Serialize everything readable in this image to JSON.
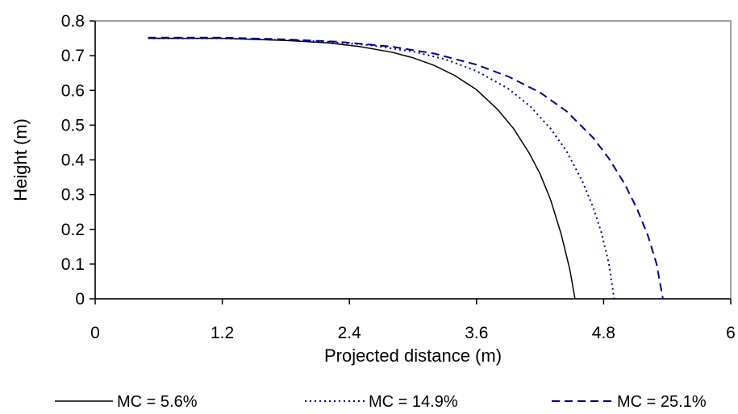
{
  "chart_data": {
    "type": "line",
    "title": "",
    "xlabel": "Projected distance (m)",
    "ylabel": "Height (m)",
    "xlim": [
      0,
      6
    ],
    "ylim": [
      0,
      0.8
    ],
    "x_ticks": [
      "0",
      "1.2",
      "2.4",
      "3.6",
      "4.8",
      "6"
    ],
    "y_ticks": [
      "0",
      "0.1",
      "0.2",
      "0.3",
      "0.4",
      "0.5",
      "0.6",
      "0.7",
      "0.8"
    ],
    "grid": false,
    "legend": "bottom",
    "series": [
      {
        "name": "MC = 5.6%",
        "style": "solid",
        "color": "#000000",
        "x": [
          0.5,
          1.2,
          1.8,
          2.2,
          2.5,
          2.8,
          3.0,
          3.2,
          3.4,
          3.6,
          3.8,
          3.95,
          4.1,
          4.2,
          4.3,
          4.4,
          4.48,
          4.53
        ],
        "y": [
          0.75,
          0.75,
          0.744,
          0.737,
          0.726,
          0.71,
          0.694,
          0.672,
          0.642,
          0.602,
          0.545,
          0.49,
          0.418,
          0.36,
          0.285,
          0.185,
          0.085,
          0.0
        ]
      },
      {
        "name": "MC = 14.9%",
        "style": "dotted",
        "color": "#00008b",
        "x": [
          0.5,
          1.2,
          1.8,
          2.2,
          2.6,
          3.0,
          3.3,
          3.6,
          3.9,
          4.1,
          4.3,
          4.45,
          4.6,
          4.7,
          4.78,
          4.85,
          4.9
        ],
        "y": [
          0.75,
          0.75,
          0.745,
          0.74,
          0.73,
          0.712,
          0.69,
          0.656,
          0.605,
          0.556,
          0.49,
          0.425,
          0.338,
          0.264,
          0.19,
          0.1,
          0.0
        ]
      },
      {
        "name": "MC = 25.1%",
        "style": "dashed",
        "color": "#00008b",
        "x": [
          0.5,
          1.2,
          1.8,
          2.3,
          2.8,
          3.2,
          3.6,
          3.9,
          4.2,
          4.45,
          4.7,
          4.85,
          5.0,
          5.12,
          5.22,
          5.3,
          5.36
        ],
        "y": [
          0.752,
          0.752,
          0.747,
          0.74,
          0.726,
          0.706,
          0.674,
          0.64,
          0.594,
          0.54,
          0.464,
          0.404,
          0.33,
          0.256,
          0.18,
          0.1,
          0.0
        ]
      }
    ]
  }
}
